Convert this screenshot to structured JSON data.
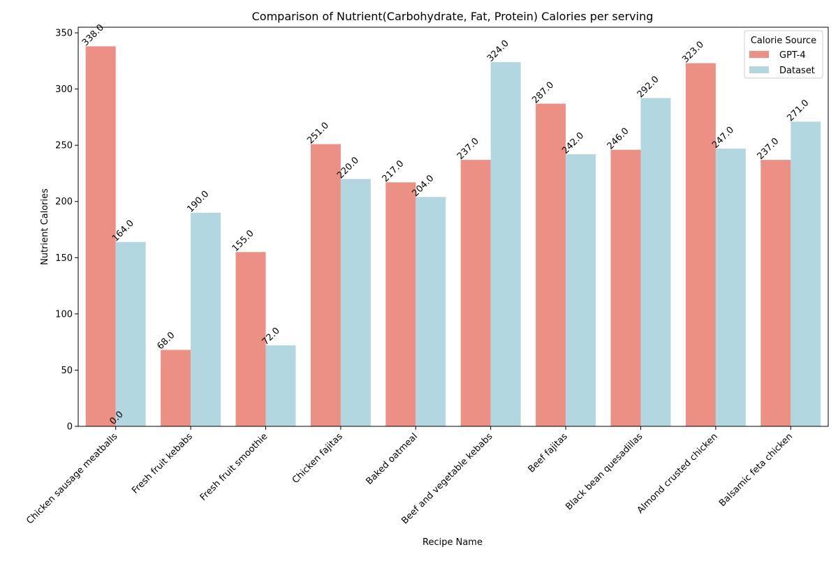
{
  "chart_data": {
    "type": "bar",
    "title": "Comparison of Nutrient(Carbohydrate, Fat, Protein) Calories per serving",
    "xlabel": "Recipe Name",
    "ylabel": "Nutrient Calories",
    "ylim": [
      0,
      355
    ],
    "yticks": [
      0,
      50,
      100,
      150,
      200,
      250,
      300,
      350
    ],
    "grid": false,
    "legend": {
      "title": "Calorie Source",
      "placement": "top-right"
    },
    "categories": [
      "Chicken sausage meatballs",
      "Fresh fruit kebabs",
      "Fresh fruit smoothie",
      "Chicken fajitas",
      "Baked oatmeal",
      "Beef and vegetable kebabs",
      "Beef fajitas",
      "Black bean quesadillas",
      "Almond crusted chicken",
      "Balsamic feta chicken"
    ],
    "series": [
      {
        "name": "GPT-4",
        "color": "#ec8f84",
        "values": [
          338.0,
          68.0,
          155.0,
          251.0,
          217.0,
          237.0,
          287.0,
          246.0,
          323.0,
          237.0
        ]
      },
      {
        "name": "Dataset",
        "color": "#b3d7e0",
        "values": [
          164.0,
          190.0,
          72.0,
          220.0,
          204.0,
          324.0,
          242.0,
          292.0,
          247.0,
          271.0
        ]
      }
    ],
    "annotations": [
      {
        "text": "0.0",
        "x": "Chicken sausage meatballs",
        "y": 0
      }
    ]
  }
}
